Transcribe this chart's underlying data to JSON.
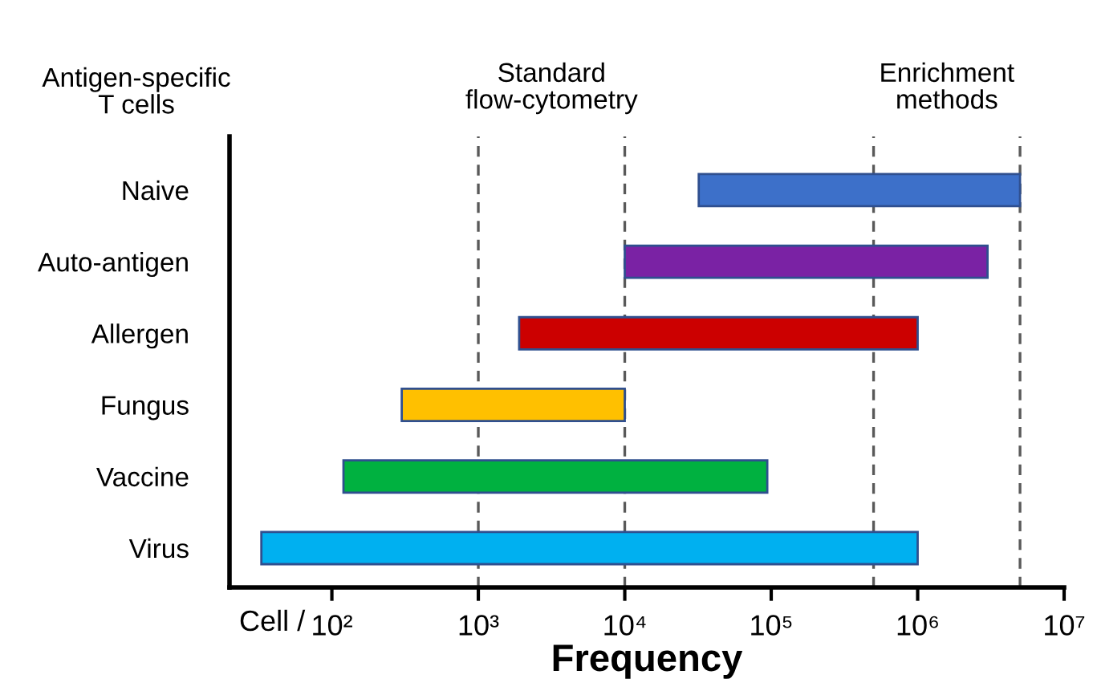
{
  "chart_data": {
    "type": "bar",
    "orientation": "horizontal",
    "log": "x",
    "xlabel": "Frequency",
    "categories": [
      "Naive",
      "Auto-antigen",
      "Allergen",
      "Fungus",
      "Vaccine",
      "Virus"
    ],
    "base": [
      32000,
      10000,
      1900,
      300,
      120,
      33
    ],
    "values": [
      4968000,
      2990000,
      998100,
      9700,
      93880,
      999967
    ],
    "colors": [
      "#3d70c9",
      "#7a22a4",
      "#cc0000",
      "#ffc000",
      "#00b140",
      "#00b0f0"
    ],
    "xlim": [
      20,
      10000000
    ],
    "xticks": [
      {
        "value": 100,
        "label": "10²"
      },
      {
        "value": 1000,
        "label": "10³"
      },
      {
        "value": 10000,
        "label": "10⁴"
      },
      {
        "value": 100000,
        "label": "10⁵"
      },
      {
        "value": 1000000,
        "label": "10⁶"
      },
      {
        "value": 10000000,
        "label": "10⁷"
      }
    ],
    "ref_lines": [
      {
        "axis": "x",
        "value": 1000,
        "color": "#595959",
        "line_style": "dashed"
      },
      {
        "axis": "x",
        "value": 10000,
        "color": "#595959",
        "line_style": "dashed"
      },
      {
        "axis": "x",
        "value": 500000,
        "color": "#595959",
        "line_style": "dashed"
      },
      {
        "axis": "x",
        "value": 5000000,
        "color": "#595959",
        "line_style": "dashed"
      }
    ],
    "annotations": [
      "Antigen-specific\nT cells",
      "Standard\nflow-cytometry",
      "Enrichment\nmethods",
      "Cell /"
    ],
    "grid": false,
    "legend": false
  }
}
